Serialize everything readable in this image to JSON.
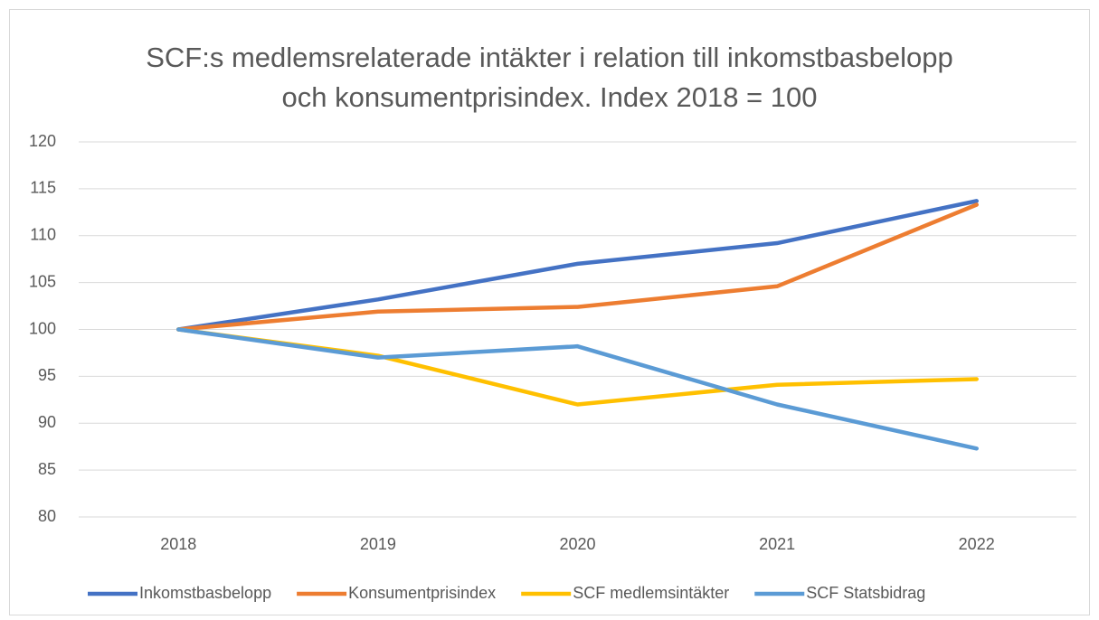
{
  "chart_data": {
    "type": "line",
    "title": "SCF:s medlemsrelaterade intäkter i relation till inkomstbasbelopp och konsumentprisindex. Index 2018 = 100",
    "categories": [
      "2018",
      "2019",
      "2020",
      "2021",
      "2022"
    ],
    "series": [
      {
        "name": "Inkomstbasbelopp",
        "color": "#4472c4",
        "values": [
          100,
          103.2,
          107.0,
          109.2,
          113.7
        ]
      },
      {
        "name": "Konsumentprisindex",
        "color": "#ed7d31",
        "values": [
          100,
          101.9,
          102.4,
          104.6,
          113.3
        ]
      },
      {
        "name": "SCF medlemsintäkter",
        "color": "#ffc000",
        "values": [
          100,
          97.2,
          92.0,
          94.1,
          94.7
        ]
      },
      {
        "name": "SCF Statsbidrag",
        "color": "#5b9bd5",
        "values": [
          100,
          97.0,
          98.2,
          92.0,
          87.3
        ]
      }
    ],
    "ylim": [
      80,
      120
    ],
    "yticks": [
      80,
      85,
      90,
      95,
      100,
      105,
      110,
      115,
      120
    ],
    "grid": true,
    "legend": "bottom"
  }
}
